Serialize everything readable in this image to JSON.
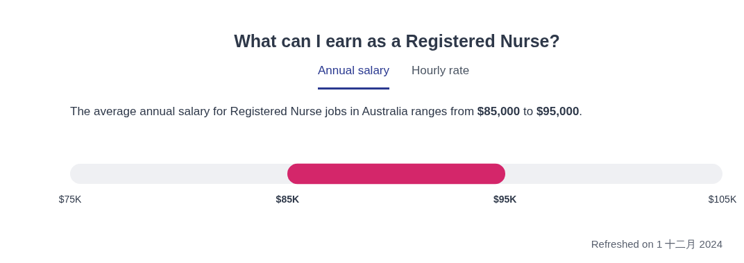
{
  "chart_data": {
    "type": "bar",
    "orientation": "horizontal",
    "title": "What can I earn as a Registered Nurse?",
    "subtitle": "The average annual salary for Registered Nurse jobs in Australia ranges from $85,000 to $95,000.",
    "categories": [
      null
    ],
    "base": [
      85000
    ],
    "values": [
      10000
    ],
    "color": "#d4266a",
    "xlim": [
      75000,
      105000
    ],
    "xticks": [
      {
        "value": 75000,
        "label": "$75K"
      },
      {
        "value": 85000,
        "label": "$85K"
      },
      {
        "value": 95000,
        "label": "$95K"
      },
      {
        "value": 105000,
        "label": "$105K"
      }
    ],
    "grid": false,
    "legend": false,
    "annotations": [
      "Annual salary",
      "Hourly rate",
      "Refreshed on 1 十二月 2024"
    ]
  }
}
